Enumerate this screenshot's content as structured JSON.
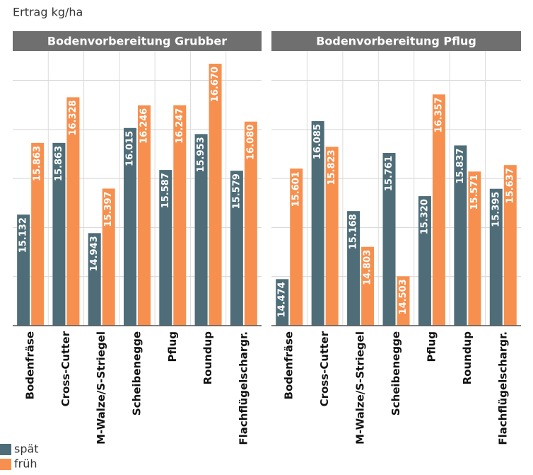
{
  "chart_data": [
    {
      "type": "bar",
      "title": "Bodenvorbereitung Grubber",
      "ylabel": "Ertrag kg/ha",
      "categories": [
        "Bodenfräse",
        "Cross-Cutter",
        "M-Walze/S-Striegel",
        "Scheibenegge",
        "Pflug",
        "Roundup",
        "Flachflügelschargr."
      ],
      "series": [
        {
          "name": "spät",
          "color": "#4e6d79",
          "values": [
            15132,
            15863,
            14943,
            16015,
            15587,
            15953,
            15579
          ],
          "value_labels": [
            "15.132",
            "15.863",
            "14.943",
            "16.015",
            "15.587",
            "15.953",
            "15.579"
          ]
        },
        {
          "name": "früh",
          "color": "#f7904f",
          "values": [
            15863,
            16328,
            15397,
            16246,
            16247,
            16670,
            16080
          ],
          "value_labels": [
            "15.863",
            "16.328",
            "15.397",
            "16.246",
            "16.247",
            "16.670",
            "16.080"
          ]
        }
      ],
      "ylim": [
        14000,
        16800
      ],
      "yticks": [
        14000,
        14500,
        15000,
        15500,
        16000,
        16500
      ],
      "grid": true
    },
    {
      "type": "bar",
      "title": "Bodenvorbereitung Pflug",
      "categories": [
        "Bodenfräse",
        "Cross-Cutter",
        "M-Walze/S-Striegel",
        "Scheibenegge",
        "Pflug",
        "Roundup",
        "Flachflügelschargr."
      ],
      "series": [
        {
          "name": "spät",
          "color": "#4e6d79",
          "values": [
            14474,
            16085,
            15168,
            15761,
            15320,
            15837,
            15395
          ],
          "value_labels": [
            "14.474",
            "16.085",
            "15.168",
            "15.761",
            "15.320",
            "15.837",
            "15.395"
          ]
        },
        {
          "name": "früh",
          "color": "#f7904f",
          "values": [
            15601,
            15823,
            14803,
            14503,
            16357,
            15571,
            15637
          ],
          "value_labels": [
            "15.601",
            "15.823",
            "14.803",
            "14.503",
            "16.357",
            "15.571",
            "15.637"
          ]
        }
      ],
      "ylim": [
        14000,
        16800
      ],
      "yticks": [
        14000,
        14500,
        15000,
        15500,
        16000,
        16500
      ],
      "grid": true
    }
  ]
}
